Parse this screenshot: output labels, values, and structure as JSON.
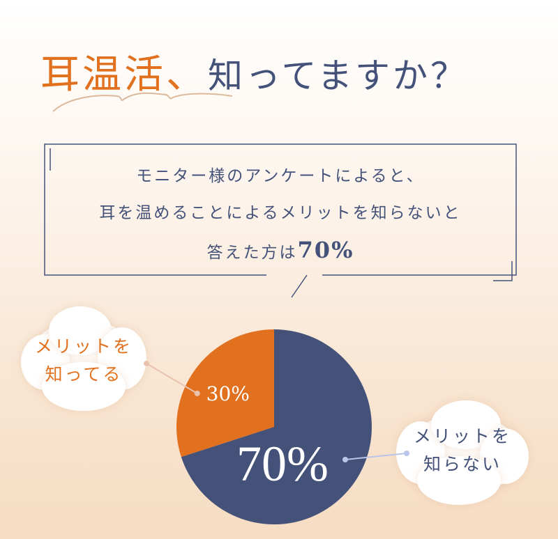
{
  "title": {
    "highlight": "耳温活、",
    "rest": "知ってますか？"
  },
  "callout": {
    "line1": "モニター様のアンケートによると、",
    "line2": "耳を温めることによるメリットを知らないと",
    "line3_prefix": "答えた方は",
    "line3_value": "70%"
  },
  "chart_data": {
    "type": "pie",
    "start": "12 o'clock, counter-clockwise for first slice",
    "slices": [
      {
        "name": "メリットを知ってる",
        "value": 30,
        "label": "30%",
        "color": "#e2711f"
      },
      {
        "name": "メリットを知らない",
        "value": 70,
        "label": "70%",
        "color": "#44527a"
      }
    ]
  },
  "labels": {
    "known_line1": "メリットを",
    "known_line2": "知ってる",
    "unknown_line1": "メリットを",
    "unknown_line2": "知らない"
  },
  "colors": {
    "accent": "#e2711f",
    "navy": "#44527a"
  }
}
